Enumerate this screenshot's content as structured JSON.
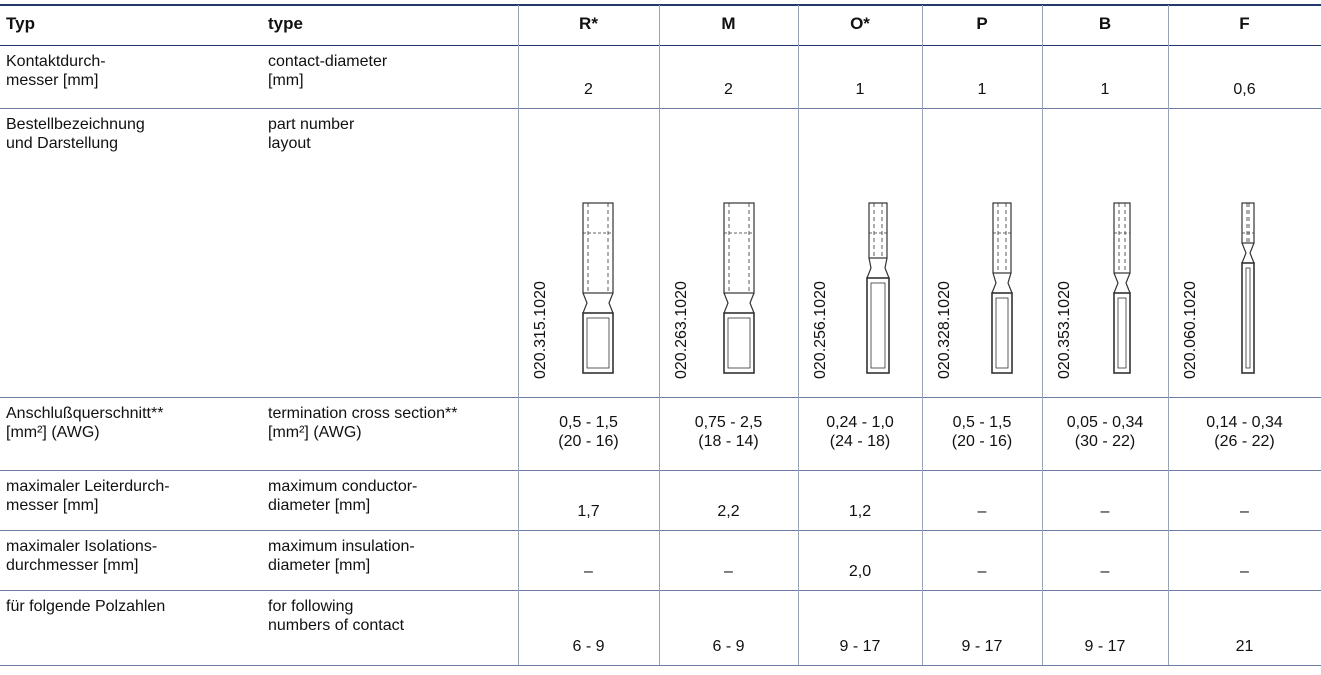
{
  "table": {
    "header": [
      "Typ",
      "type",
      "R*",
      "M",
      "O*",
      "P",
      "B",
      "F"
    ],
    "rows": [
      {
        "de": "Kontaktdurch-\nmesser [mm]",
        "en": "contact-diameter\n[mm]",
        "values": [
          "2",
          "2",
          "1",
          "1",
          "1",
          "0,6"
        ]
      },
      {
        "de": "Bestellbezeichnung\nund Darstellung",
        "en": "part number\nlayout",
        "values": [
          "020.315.1020",
          "020.263.1020",
          "020.256.1020",
          "020.328.1020",
          "020.353.1020",
          "020.060.1020"
        ]
      },
      {
        "de": "Anschlußquerschnitt**\n[mm²] (AWG)",
        "en": "termination cross section**\n[mm²] (AWG)",
        "values": [
          "0,5 - 1,5\n(20 - 16)",
          "0,75 - 2,5\n(18 - 14)",
          "0,24 - 1,0\n(24 - 18)",
          "0,5 - 1,5\n(20 - 16)",
          "0,05 - 0,34\n(30 - 22)",
          "0,14 - 0,34\n(26 - 22)"
        ]
      },
      {
        "de": "maximaler Leiterdurch-\nmesser [mm]",
        "en": "maximum conductor-\ndiameter [mm]",
        "values": [
          "1,7",
          "2,2",
          "1,2",
          "–",
          "–",
          "–"
        ]
      },
      {
        "de": "maximaler Isolations-\ndurchmesser [mm]",
        "en": "maximum insulation-\ndiameter [mm]",
        "values": [
          "–",
          "–",
          "2,0",
          "–",
          "–",
          "–"
        ]
      },
      {
        "de": "für folgende Polzahlen",
        "en": "for following\nnumbers of contact",
        "values": [
          "6 - 9",
          "6 - 9",
          "9 - 17",
          "9 - 17",
          "9 - 17",
          "21"
        ]
      }
    ]
  }
}
